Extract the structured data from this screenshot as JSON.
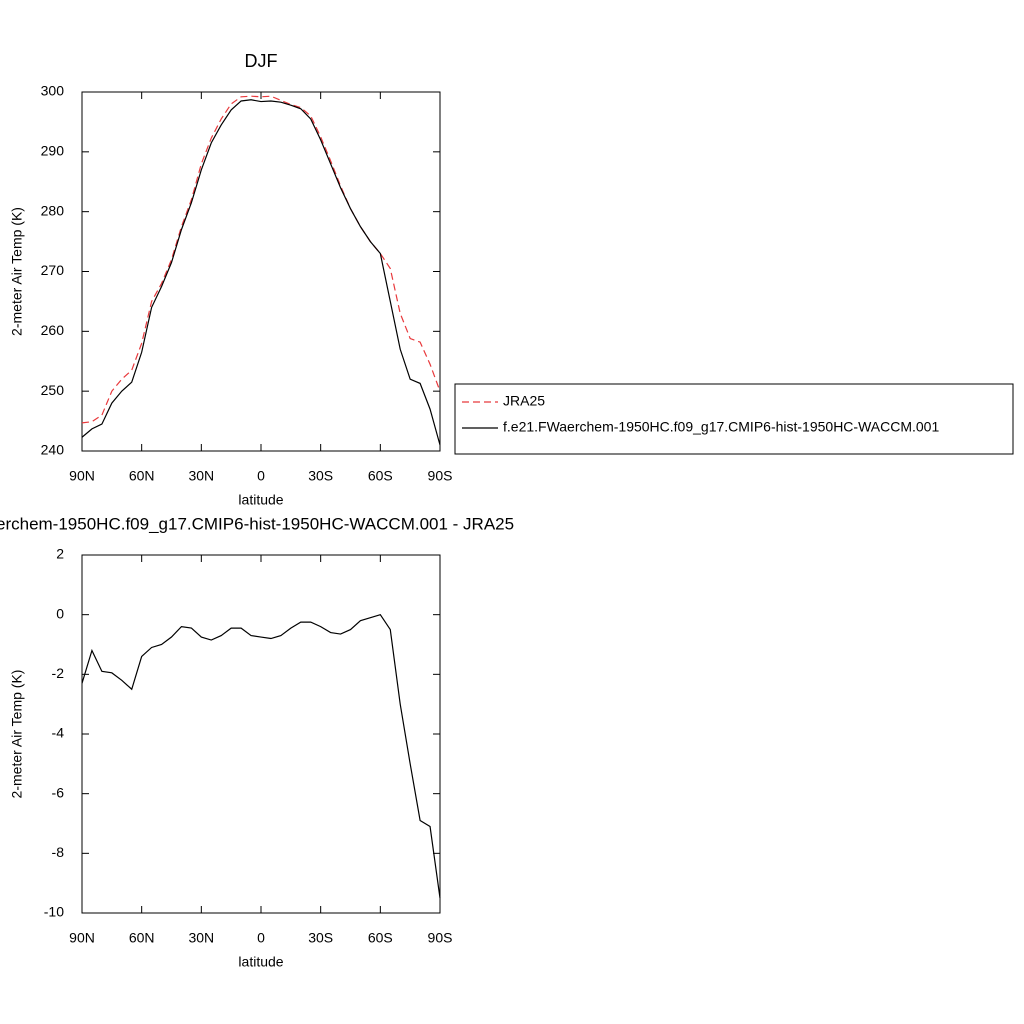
{
  "chart_data": [
    {
      "type": "line",
      "title": "DJF",
      "xlabel": "latitude",
      "ylabel": "2-meter Air Temp (K)",
      "x": [
        90,
        85,
        80,
        75,
        70,
        65,
        60,
        55,
        50,
        45,
        40,
        35,
        30,
        25,
        20,
        15,
        10,
        5,
        0,
        -5,
        -10,
        -15,
        -20,
        -25,
        -30,
        -35,
        -40,
        -45,
        -50,
        -55,
        -60,
        -65,
        -70,
        -75,
        -80,
        -85,
        -90
      ],
      "series": [
        {
          "name": "JRA25",
          "color": "#e8393c",
          "dashed": true,
          "values": [
            244.7,
            244.9,
            246,
            250,
            252,
            253.5,
            258,
            265,
            268,
            272,
            277.5,
            282,
            288,
            292.3,
            295.5,
            298,
            299.2,
            299.3,
            299.2,
            299.3,
            298.6,
            297.9,
            297.4,
            296,
            292.5,
            288.5,
            284.3,
            280.5,
            277.5,
            275,
            273,
            270.5,
            263,
            258.8,
            258.2,
            254.5,
            250
          ]
        },
        {
          "name": "f.e21.FWaerchem-1950HC.f09_g17.CMIP6-hist-1950HC-WACCM.001",
          "color": "#000000",
          "dashed": false,
          "values": [
            242.3,
            243.7,
            244.5,
            248,
            250,
            251.5,
            256.5,
            264,
            267.5,
            271.5,
            277,
            281.5,
            287,
            291.5,
            294.5,
            297,
            298.5,
            298.7,
            298.4,
            298.5,
            298.3,
            297.8,
            297.2,
            295.5,
            292,
            288,
            284,
            280.5,
            277.5,
            275,
            273,
            265,
            257,
            252,
            251.3,
            247,
            241
          ]
        }
      ],
      "xlim": [
        90,
        -90
      ],
      "xticks": [
        {
          "value": 90,
          "label": "90N"
        },
        {
          "value": 60,
          "label": "60N"
        },
        {
          "value": 30,
          "label": "30N"
        },
        0,
        {
          "value": -30,
          "label": "30S"
        },
        {
          "value": -60,
          "label": "60S"
        },
        {
          "value": -90,
          "label": "90S"
        }
      ],
      "ylim": [
        240,
        300
      ],
      "yticks": [
        240,
        250,
        260,
        270,
        280,
        290,
        300
      ],
      "legend": "right"
    },
    {
      "type": "line",
      "title": "erchem-1950HC.f09_g17.CMIP6-hist-1950HC-WACCM.001 - JRA25",
      "xlabel": "latitude",
      "ylabel": "2-meter Air Temp (K)",
      "x": [
        90,
        85,
        80,
        75,
        70,
        65,
        60,
        55,
        50,
        45,
        40,
        35,
        30,
        25,
        20,
        15,
        10,
        5,
        0,
        -5,
        -10,
        -15,
        -20,
        -25,
        -30,
        -35,
        -40,
        -45,
        -50,
        -55,
        -60,
        -65,
        -70,
        -75,
        -80,
        -85,
        -90
      ],
      "color": "#000000",
      "values": [
        -2.3,
        -1.2,
        -1.9,
        -1.95,
        -2.2,
        -2.5,
        -1.4,
        -1.1,
        -1.0,
        -0.75,
        -0.4,
        -0.45,
        -0.75,
        -0.85,
        -0.7,
        -0.45,
        -0.45,
        -0.7,
        -0.75,
        -0.8,
        -0.7,
        -0.45,
        -0.25,
        -0.25,
        -0.4,
        -0.6,
        -0.65,
        -0.5,
        -0.2,
        -0.1,
        0.0,
        -0.5,
        -3.0,
        -5.0,
        -6.9,
        -7.1,
        -9.5
      ],
      "xlim": [
        90,
        -90
      ],
      "xticks": [
        {
          "value": 90,
          "label": "90N"
        },
        {
          "value": 60,
          "label": "60N"
        },
        {
          "value": 30,
          "label": "30N"
        },
        0,
        {
          "value": -30,
          "label": "30S"
        },
        {
          "value": -60,
          "label": "60S"
        },
        {
          "value": -90,
          "label": "90S"
        }
      ],
      "ylim": [
        -10,
        2
      ],
      "yticks": [
        -10,
        -8,
        -6,
        -4,
        -2,
        0,
        2
      ]
    }
  ]
}
